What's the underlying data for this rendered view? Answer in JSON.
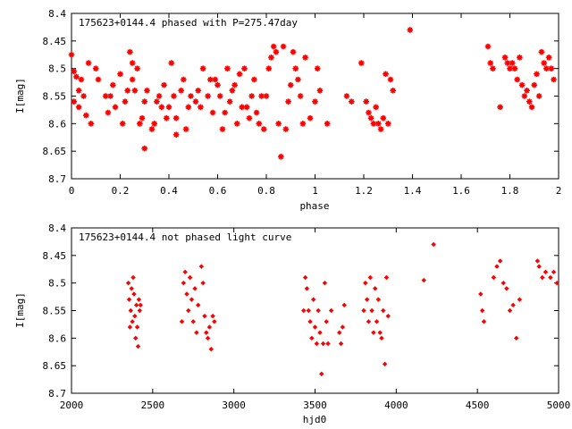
{
  "chart_data": [
    {
      "type": "scatter",
      "title": "175623+0144.4 phased with P=275.47day",
      "xlabel": "phase",
      "ylabel": "I[mag]",
      "xlim": [
        0,
        2
      ],
      "ylim": [
        8.7,
        8.4
      ],
      "y_inverted": true,
      "xticks": [
        0,
        0.2,
        0.4,
        0.6,
        0.8,
        1,
        1.2,
        1.4,
        1.6,
        1.8,
        2
      ],
      "xtick_labels": [
        "0",
        "0.2",
        "0.4",
        "0.6",
        "0.8",
        "1",
        "1.2",
        "1.4",
        "1.6",
        "1.8",
        "2"
      ],
      "yticks": [
        8.4,
        8.45,
        8.5,
        8.55,
        8.6,
        8.65,
        8.7
      ],
      "ytick_labels": [
        "8.4",
        "8.45",
        "8.5",
        "8.55",
        "8.6",
        "8.65",
        "8.7"
      ],
      "grid": false,
      "marker": "star",
      "color": "#ff0000",
      "points": [
        [
          0.0,
          8.475
        ],
        [
          0.01,
          8.505
        ],
        [
          0.01,
          8.56
        ],
        [
          0.02,
          8.515
        ],
        [
          0.03,
          8.54
        ],
        [
          0.03,
          8.57
        ],
        [
          0.04,
          8.52
        ],
        [
          0.05,
          8.55
        ],
        [
          0.06,
          8.585
        ],
        [
          0.07,
          8.49
        ],
        [
          0.08,
          8.6
        ],
        [
          0.1,
          8.5
        ],
        [
          0.11,
          8.52
        ],
        [
          0.14,
          8.55
        ],
        [
          0.15,
          8.58
        ],
        [
          0.16,
          8.55
        ],
        [
          0.17,
          8.53
        ],
        [
          0.18,
          8.57
        ],
        [
          0.2,
          8.51
        ],
        [
          0.21,
          8.6
        ],
        [
          0.22,
          8.56
        ],
        [
          0.23,
          8.54
        ],
        [
          0.24,
          8.47
        ],
        [
          0.25,
          8.52
        ],
        [
          0.25,
          8.49
        ],
        [
          0.26,
          8.54
        ],
        [
          0.27,
          8.5
        ],
        [
          0.28,
          8.6
        ],
        [
          0.29,
          8.59
        ],
        [
          0.3,
          8.645
        ],
        [
          0.3,
          8.56
        ],
        [
          0.31,
          8.54
        ],
        [
          0.33,
          8.61
        ],
        [
          0.34,
          8.6
        ],
        [
          0.35,
          8.56
        ],
        [
          0.36,
          8.55
        ],
        [
          0.37,
          8.57
        ],
        [
          0.38,
          8.53
        ],
        [
          0.39,
          8.59
        ],
        [
          0.4,
          8.57
        ],
        [
          0.41,
          8.49
        ],
        [
          0.42,
          8.55
        ],
        [
          0.43,
          8.59
        ],
        [
          0.43,
          8.62
        ],
        [
          0.45,
          8.54
        ],
        [
          0.46,
          8.52
        ],
        [
          0.47,
          8.61
        ],
        [
          0.48,
          8.57
        ],
        [
          0.49,
          8.55
        ],
        [
          0.51,
          8.56
        ],
        [
          0.52,
          8.54
        ],
        [
          0.53,
          8.57
        ],
        [
          0.54,
          8.5
        ],
        [
          0.56,
          8.55
        ],
        [
          0.57,
          8.52
        ],
        [
          0.58,
          8.58
        ],
        [
          0.59,
          8.52
        ],
        [
          0.6,
          8.53
        ],
        [
          0.61,
          8.55
        ],
        [
          0.62,
          8.61
        ],
        [
          0.63,
          8.58
        ],
        [
          0.64,
          8.5
        ],
        [
          0.65,
          8.56
        ],
        [
          0.66,
          8.54
        ],
        [
          0.67,
          8.53
        ],
        [
          0.68,
          8.6
        ],
        [
          0.69,
          8.51
        ],
        [
          0.7,
          8.57
        ],
        [
          0.71,
          8.5
        ],
        [
          0.72,
          8.57
        ],
        [
          0.73,
          8.59
        ],
        [
          0.74,
          8.55
        ],
        [
          0.75,
          8.52
        ],
        [
          0.76,
          8.58
        ],
        [
          0.77,
          8.6
        ],
        [
          0.78,
          8.55
        ],
        [
          0.79,
          8.61
        ],
        [
          0.8,
          8.55
        ],
        [
          0.81,
          8.5
        ],
        [
          0.82,
          8.48
        ],
        [
          0.83,
          8.46
        ],
        [
          0.84,
          8.47
        ],
        [
          0.85,
          8.6
        ],
        [
          0.86,
          8.66
        ],
        [
          0.87,
          8.46
        ],
        [
          0.88,
          8.61
        ],
        [
          0.89,
          8.56
        ],
        [
          0.9,
          8.53
        ],
        [
          0.91,
          8.47
        ],
        [
          0.92,
          8.5
        ],
        [
          0.93,
          8.52
        ],
        [
          0.94,
          8.55
        ],
        [
          0.95,
          8.6
        ],
        [
          0.96,
          8.48
        ],
        [
          0.98,
          8.59
        ],
        [
          1.0,
          8.56
        ],
        [
          1.01,
          8.5
        ],
        [
          1.02,
          8.54
        ],
        [
          1.05,
          8.6
        ],
        [
          1.13,
          8.55
        ],
        [
          1.15,
          8.56
        ],
        [
          1.19,
          8.49
        ],
        [
          1.21,
          8.56
        ],
        [
          1.22,
          8.58
        ],
        [
          1.23,
          8.59
        ],
        [
          1.24,
          8.6
        ],
        [
          1.25,
          8.57
        ],
        [
          1.26,
          8.6
        ],
        [
          1.27,
          8.61
        ],
        [
          1.28,
          8.59
        ],
        [
          1.29,
          8.51
        ],
        [
          1.3,
          8.6
        ],
        [
          1.31,
          8.52
        ],
        [
          1.32,
          8.54
        ],
        [
          1.39,
          8.43
        ],
        [
          1.71,
          8.46
        ],
        [
          1.72,
          8.49
        ],
        [
          1.73,
          8.5
        ],
        [
          1.76,
          8.57
        ],
        [
          1.78,
          8.48
        ],
        [
          1.79,
          8.49
        ],
        [
          1.8,
          8.5
        ],
        [
          1.81,
          8.49
        ],
        [
          1.82,
          8.5
        ],
        [
          1.83,
          8.52
        ],
        [
          1.84,
          8.48
        ],
        [
          1.85,
          8.53
        ],
        [
          1.86,
          8.55
        ],
        [
          1.87,
          8.54
        ],
        [
          1.88,
          8.56
        ],
        [
          1.89,
          8.57
        ],
        [
          1.9,
          8.53
        ],
        [
          1.91,
          8.51
        ],
        [
          1.92,
          8.55
        ],
        [
          1.93,
          8.47
        ],
        [
          1.94,
          8.49
        ],
        [
          1.95,
          8.5
        ],
        [
          1.96,
          8.48
        ],
        [
          1.97,
          8.5
        ],
        [
          1.98,
          8.52
        ]
      ]
    },
    {
      "type": "scatter",
      "title": "175623+0144.4 not phased light curve",
      "xlabel": "hjd0",
      "ylabel": "I[mag]",
      "xlim": [
        2000,
        5000
      ],
      "ylim": [
        8.7,
        8.4
      ],
      "y_inverted": true,
      "xticks": [
        2000,
        2500,
        3000,
        3500,
        4000,
        4500,
        5000
      ],
      "xtick_labels": [
        "2000",
        "2500",
        "3000",
        "3500",
        "4000",
        "4500",
        "5000"
      ],
      "yticks": [
        8.4,
        8.45,
        8.5,
        8.55,
        8.6,
        8.65,
        8.7
      ],
      "ytick_labels": [
        "8.4",
        "8.45",
        "8.5",
        "8.55",
        "8.6",
        "8.65",
        "8.7"
      ],
      "grid": false,
      "marker": "diamond",
      "color": "#ff0000",
      "points": [
        [
          2350,
          8.5
        ],
        [
          2355,
          8.53
        ],
        [
          2360,
          8.58
        ],
        [
          2365,
          8.55
        ],
        [
          2370,
          8.51
        ],
        [
          2375,
          8.57
        ],
        [
          2380,
          8.49
        ],
        [
          2385,
          8.52
        ],
        [
          2390,
          8.56
        ],
        [
          2395,
          8.6
        ],
        [
          2400,
          8.54
        ],
        [
          2405,
          8.58
        ],
        [
          2410,
          8.615
        ],
        [
          2415,
          8.53
        ],
        [
          2420,
          8.55
        ],
        [
          2425,
          8.54
        ],
        [
          2680,
          8.57
        ],
        [
          2690,
          8.5
        ],
        [
          2700,
          8.48
        ],
        [
          2710,
          8.52
        ],
        [
          2720,
          8.55
        ],
        [
          2730,
          8.49
        ],
        [
          2740,
          8.53
        ],
        [
          2750,
          8.57
        ],
        [
          2760,
          8.51
        ],
        [
          2770,
          8.59
        ],
        [
          2780,
          8.54
        ],
        [
          2800,
          8.47
        ],
        [
          2810,
          8.5
        ],
        [
          2820,
          8.56
        ],
        [
          2830,
          8.59
        ],
        [
          2840,
          8.6
        ],
        [
          2850,
          8.58
        ],
        [
          2860,
          8.62
        ],
        [
          2870,
          8.56
        ],
        [
          2880,
          8.57
        ],
        [
          3430,
          8.55
        ],
        [
          3440,
          8.49
        ],
        [
          3450,
          8.51
        ],
        [
          3460,
          8.55
        ],
        [
          3470,
          8.57
        ],
        [
          3480,
          8.6
        ],
        [
          3490,
          8.53
        ],
        [
          3500,
          8.58
        ],
        [
          3510,
          8.61
        ],
        [
          3520,
          8.55
        ],
        [
          3530,
          8.59
        ],
        [
          3540,
          8.665
        ],
        [
          3550,
          8.61
        ],
        [
          3560,
          8.5
        ],
        [
          3570,
          8.57
        ],
        [
          3580,
          8.61
        ],
        [
          3600,
          8.55
        ],
        [
          3650,
          8.59
        ],
        [
          3660,
          8.61
        ],
        [
          3670,
          8.58
        ],
        [
          3680,
          8.54
        ],
        [
          3800,
          8.55
        ],
        [
          3810,
          8.5
        ],
        [
          3820,
          8.53
        ],
        [
          3830,
          8.57
        ],
        [
          3840,
          8.49
        ],
        [
          3850,
          8.55
        ],
        [
          3860,
          8.59
        ],
        [
          3870,
          8.51
        ],
        [
          3880,
          8.57
        ],
        [
          3890,
          8.53
        ],
        [
          3900,
          8.59
        ],
        [
          3910,
          8.6
        ],
        [
          3920,
          8.55
        ],
        [
          3930,
          8.647
        ],
        [
          3940,
          8.49
        ],
        [
          3950,
          8.56
        ],
        [
          4170,
          8.495
        ],
        [
          4230,
          8.43
        ],
        [
          4520,
          8.52
        ],
        [
          4530,
          8.55
        ],
        [
          4540,
          8.57
        ],
        [
          4600,
          8.49
        ],
        [
          4620,
          8.47
        ],
        [
          4640,
          8.46
        ],
        [
          4660,
          8.5
        ],
        [
          4680,
          8.51
        ],
        [
          4700,
          8.55
        ],
        [
          4720,
          8.54
        ],
        [
          4740,
          8.6
        ],
        [
          4760,
          8.53
        ],
        [
          4870,
          8.46
        ],
        [
          4880,
          8.47
        ],
        [
          4900,
          8.49
        ],
        [
          4920,
          8.48
        ],
        [
          4950,
          8.49
        ],
        [
          4970,
          8.48
        ],
        [
          4990,
          8.5
        ]
      ]
    }
  ]
}
